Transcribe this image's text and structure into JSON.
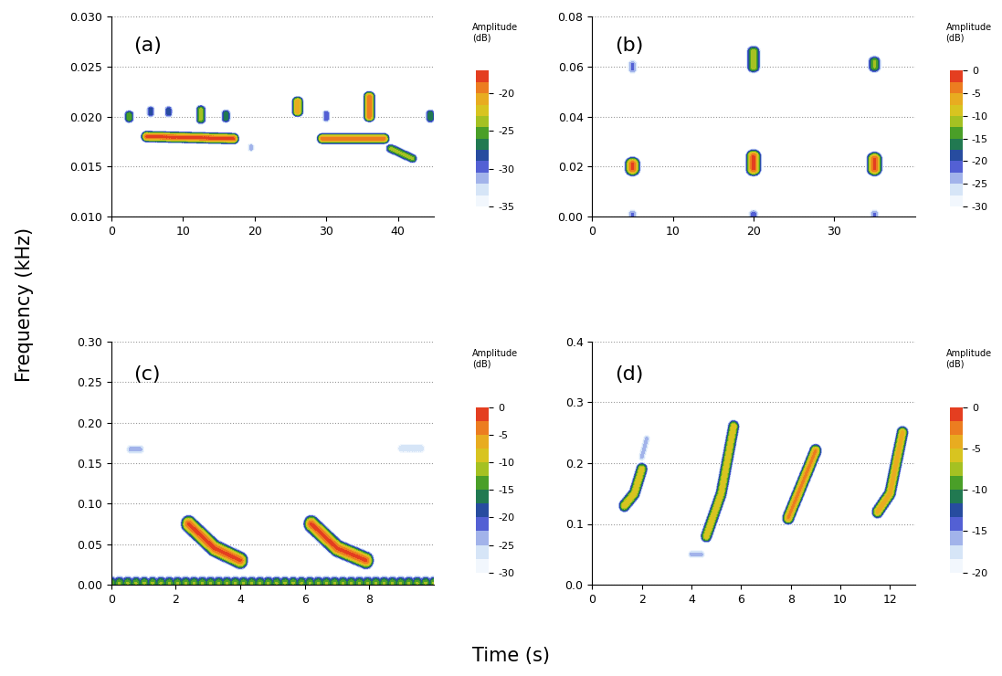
{
  "x_label": "Time (s)",
  "y_label": "Frequency (kHz)",
  "chart_data": [
    {
      "type": "spectrogram",
      "label": "(a)",
      "xlim": [
        0,
        45
      ],
      "xticks": [
        0,
        10,
        20,
        30,
        40
      ],
      "ylim": [
        0.01,
        0.03
      ],
      "yticks": [
        {
          "value": 0.01,
          "label": "0.010"
        },
        {
          "value": 0.015,
          "label": "0.015"
        },
        {
          "value": 0.02,
          "label": "0.020"
        },
        {
          "value": 0.025,
          "label": "0.025"
        },
        {
          "value": 0.03,
          "label": "0.030"
        }
      ],
      "grid": "y",
      "colorbar_label": "Amplitude\n(dB)",
      "colorbar_range": [
        -35,
        -17
      ],
      "colorbar_ticks": [
        -35,
        -30,
        -25,
        -20
      ],
      "calls": [
        {
          "time": [
            5,
            17
          ],
          "frequency": [
            0.018,
            0.0178
          ],
          "amplitude": -18
        },
        {
          "time": [
            2.5,
            2.5
          ],
          "frequency": [
            0.0198,
            0.0202
          ],
          "amplitude": -25
        },
        {
          "time": [
            5.5,
            5.5
          ],
          "frequency": [
            0.0203,
            0.0207
          ],
          "amplitude": -28
        },
        {
          "time": [
            8,
            8
          ],
          "frequency": [
            0.0203,
            0.0207
          ],
          "amplitude": -28
        },
        {
          "time": [
            12.5,
            12.5
          ],
          "frequency": [
            0.0197,
            0.0207
          ],
          "amplitude": -24
        },
        {
          "time": [
            16,
            16
          ],
          "frequency": [
            0.0198,
            0.0203
          ],
          "amplitude": -26
        },
        {
          "time": [
            19.5,
            19.5
          ],
          "frequency": [
            0.0168,
            0.017
          ],
          "amplitude": -31
        },
        {
          "time": [
            26,
            26
          ],
          "frequency": [
            0.0205,
            0.0215
          ],
          "amplitude": -20
        },
        {
          "time": [
            30,
            30
          ],
          "frequency": [
            0.0198,
            0.0203
          ],
          "amplitude": -29
        },
        {
          "time": [
            29.5,
            38
          ],
          "frequency": [
            0.0178,
            0.0178
          ],
          "amplitude": -19
        },
        {
          "time": [
            36,
            36
          ],
          "frequency": [
            0.02,
            0.022
          ],
          "amplitude": -19
        },
        {
          "time": [
            39,
            42
          ],
          "frequency": [
            0.0168,
            0.0158
          ],
          "amplitude": -24
        },
        {
          "time": [
            44.5,
            44.5
          ],
          "frequency": [
            0.0198,
            0.0203
          ],
          "amplitude": -26
        }
      ]
    },
    {
      "type": "spectrogram",
      "label": "(b)",
      "xlim": [
        0,
        40
      ],
      "xticks": [
        0,
        10,
        20,
        30
      ],
      "ylim": [
        0,
        0.08
      ],
      "yticks": [
        {
          "value": 0,
          "label": "0.00"
        },
        {
          "value": 0.02,
          "label": "0.02"
        },
        {
          "value": 0.04,
          "label": "0.04"
        },
        {
          "value": 0.06,
          "label": "0.06"
        },
        {
          "value": 0.08,
          "label": "0.08"
        }
      ],
      "grid": "y",
      "colorbar_label": "Amplitude\n(dB)",
      "colorbar_range": [
        -30,
        0
      ],
      "colorbar_ticks": [
        -30,
        -25,
        -20,
        -15,
        -10,
        -5,
        0
      ],
      "calls": [
        {
          "time": [
            5,
            5
          ],
          "frequency": [
            0.019,
            0.021
          ],
          "amplitude": -2
        },
        {
          "time": [
            20,
            20
          ],
          "frequency": [
            0.019,
            0.024
          ],
          "amplitude": -2
        },
        {
          "time": [
            35,
            35
          ],
          "frequency": [
            0.019,
            0.023
          ],
          "amplitude": -2
        },
        {
          "time": [
            5,
            5
          ],
          "frequency": [
            0.059,
            0.061
          ],
          "amplitude": -22
        },
        {
          "time": [
            20,
            20
          ],
          "frequency": [
            0.06,
            0.066
          ],
          "amplitude": -10
        },
        {
          "time": [
            35,
            35
          ],
          "frequency": [
            0.06,
            0.062
          ],
          "amplitude": -12
        },
        {
          "time": [
            5,
            5
          ],
          "frequency": [
            0.0,
            0.001
          ],
          "amplitude": -22
        },
        {
          "time": [
            20,
            20
          ],
          "frequency": [
            0.0,
            0.001
          ],
          "amplitude": -21
        },
        {
          "time": [
            35,
            35
          ],
          "frequency": [
            0.0,
            0.001
          ],
          "amplitude": -22
        }
      ]
    },
    {
      "type": "spectrogram",
      "label": "(c)",
      "xlim": [
        0,
        10
      ],
      "xticks": [
        0,
        2,
        4,
        6,
        8
      ],
      "ylim": [
        0,
        0.3
      ],
      "yticks": [
        {
          "value": 0,
          "label": "0.00"
        },
        {
          "value": 0.05,
          "label": "0.05"
        },
        {
          "value": 0.1,
          "label": "0.10"
        },
        {
          "value": 0.15,
          "label": "0.15"
        },
        {
          "value": 0.2,
          "label": "0.20"
        },
        {
          "value": 0.25,
          "label": "0.25"
        },
        {
          "value": 0.3,
          "label": "0.30"
        }
      ],
      "grid": "y",
      "colorbar_label": "Amplitude\n(dB)",
      "colorbar_range": [
        -30,
        0
      ],
      "colorbar_ticks": [
        -30,
        -25,
        -20,
        -15,
        -10,
        -5,
        0
      ],
      "calls": [
        {
          "time": [
            2.4,
            3.2,
            4.0
          ],
          "frequency": [
            0.075,
            0.045,
            0.03
          ],
          "amplitude": -2
        },
        {
          "time": [
            6.2,
            7.0,
            7.9
          ],
          "frequency": [
            0.075,
            0.045,
            0.03
          ],
          "amplitude": -2
        },
        {
          "time": [
            0,
            10
          ],
          "frequency": [
            0.002,
            0.002
          ],
          "amplitude": -12
        },
        {
          "time": [
            0.6,
            0.9
          ],
          "frequency": [
            0.167,
            0.167
          ],
          "amplitude": -24
        },
        {
          "time": [
            9.0,
            9.6
          ],
          "frequency": [
            0.168,
            0.168
          ],
          "amplitude": -25
        }
      ]
    },
    {
      "type": "spectrogram",
      "label": "(d)",
      "xlim": [
        0,
        13
      ],
      "xticks": [
        0,
        2,
        4,
        6,
        8,
        10,
        12
      ],
      "ylim": [
        0,
        0.4
      ],
      "yticks": [
        {
          "value": 0,
          "label": "0.0"
        },
        {
          "value": 0.1,
          "label": "0.1"
        },
        {
          "value": 0.2,
          "label": "0.2"
        },
        {
          "value": 0.3,
          "label": "0.3"
        },
        {
          "value": 0.4,
          "label": "0.4"
        }
      ],
      "grid": "y",
      "colorbar_label": "Amplitude\n(dB)",
      "colorbar_range": [
        -20,
        0
      ],
      "colorbar_ticks": [
        -20,
        -15,
        -10,
        -5,
        0
      ],
      "calls": [
        {
          "time": [
            1.3,
            1.7,
            2.0
          ],
          "frequency": [
            0.13,
            0.15,
            0.19
          ],
          "amplitude": -5
        },
        {
          "time": [
            2.0,
            2.2
          ],
          "frequency": [
            0.21,
            0.24
          ],
          "amplitude": -16
        },
        {
          "time": [
            4.6,
            5.2,
            5.7
          ],
          "frequency": [
            0.08,
            0.15,
            0.26
          ],
          "amplitude": -5
        },
        {
          "time": [
            7.9,
            8.4,
            9.0
          ],
          "frequency": [
            0.11,
            0.16,
            0.22
          ],
          "amplitude": -3
        },
        {
          "time": [
            11.5,
            12.0,
            12.5
          ],
          "frequency": [
            0.12,
            0.15,
            0.25
          ],
          "amplitude": -4
        },
        {
          "time": [
            4.0,
            4.4
          ],
          "frequency": [
            0.05,
            0.05
          ],
          "amplitude": -16
        }
      ]
    }
  ]
}
